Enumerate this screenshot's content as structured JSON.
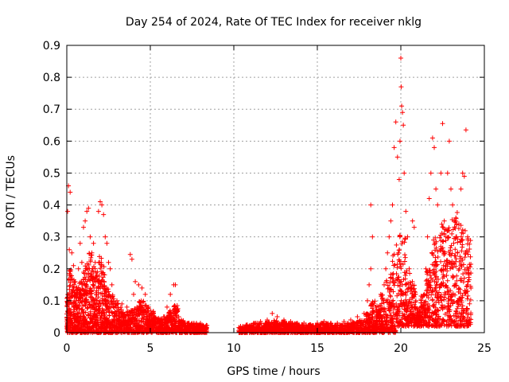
{
  "chart_data": {
    "type": "scatter",
    "title": "Day 254 of 2024, Rate Of TEC Index for receiver nklg",
    "xlabel": "GPS time / hours",
    "ylabel": "ROTI / TECUs",
    "xlim": [
      0,
      25
    ],
    "ylim": [
      0,
      0.9
    ],
    "xticks": [
      0,
      5,
      10,
      15,
      20,
      25
    ],
    "yticks": [
      0,
      0.1,
      0.2,
      0.3,
      0.4,
      0.5,
      0.6,
      0.7,
      0.8,
      0.9
    ],
    "grid": true,
    "marker": "+",
    "color": "#ff0000",
    "series": [
      {
        "name": "ROTI",
        "points": [
          [
            0.1,
            0.46
          ],
          [
            0.2,
            0.44
          ],
          [
            0.05,
            0.38
          ],
          [
            0.15,
            0.26
          ],
          [
            0.3,
            0.25
          ],
          [
            0.4,
            0.21
          ],
          [
            0.2,
            0.18
          ],
          [
            0.5,
            0.16
          ],
          [
            0.6,
            0.14
          ],
          [
            0.7,
            0.2
          ],
          [
            0.8,
            0.28
          ],
          [
            0.9,
            0.22
          ],
          [
            1.0,
            0.33
          ],
          [
            1.1,
            0.35
          ],
          [
            1.2,
            0.38
          ],
          [
            1.3,
            0.39
          ],
          [
            1.4,
            0.3
          ],
          [
            1.5,
            0.25
          ],
          [
            1.6,
            0.28
          ],
          [
            1.7,
            0.22
          ],
          [
            1.8,
            0.18
          ],
          [
            1.9,
            0.38
          ],
          [
            2.0,
            0.41
          ],
          [
            2.1,
            0.4
          ],
          [
            2.2,
            0.37
          ],
          [
            2.3,
            0.3
          ],
          [
            2.4,
            0.28
          ],
          [
            2.5,
            0.22
          ],
          [
            2.6,
            0.2
          ],
          [
            2.7,
            0.15
          ],
          [
            3.0,
            0.1
          ],
          [
            3.3,
            0.09
          ],
          [
            3.6,
            0.08
          ],
          [
            3.8,
            0.245
          ],
          [
            3.9,
            0.23
          ],
          [
            4.0,
            0.12
          ],
          [
            4.1,
            0.16
          ],
          [
            4.3,
            0.15
          ],
          [
            4.5,
            0.14
          ],
          [
            4.7,
            0.12
          ],
          [
            4.9,
            0.08
          ],
          [
            5.2,
            0.05
          ],
          [
            5.5,
            0.04
          ],
          [
            5.8,
            0.05
          ],
          [
            6.0,
            0.08
          ],
          [
            6.2,
            0.12
          ],
          [
            6.4,
            0.15
          ],
          [
            6.5,
            0.15
          ],
          [
            6.7,
            0.05
          ],
          [
            7.0,
            0.03
          ],
          [
            7.3,
            0.03
          ],
          [
            7.6,
            0.025
          ],
          [
            8.0,
            0.03
          ],
          [
            8.2,
            0.02
          ],
          [
            10.4,
            0.02
          ],
          [
            10.8,
            0.025
          ],
          [
            11.2,
            0.03
          ],
          [
            11.6,
            0.035
          ],
          [
            12.0,
            0.04
          ],
          [
            12.3,
            0.06
          ],
          [
            12.6,
            0.05
          ],
          [
            13.0,
            0.04
          ],
          [
            13.4,
            0.035
          ],
          [
            13.8,
            0.03
          ],
          [
            14.2,
            0.03
          ],
          [
            14.6,
            0.025
          ],
          [
            15.0,
            0.03
          ],
          [
            15.4,
            0.035
          ],
          [
            15.8,
            0.03
          ],
          [
            16.2,
            0.03
          ],
          [
            16.6,
            0.035
          ],
          [
            17.0,
            0.04
          ],
          [
            17.4,
            0.05
          ],
          [
            17.8,
            0.06
          ],
          [
            18.0,
            0.1
          ],
          [
            18.1,
            0.15
          ],
          [
            18.2,
            0.2
          ],
          [
            18.3,
            0.3
          ],
          [
            18.2,
            0.4
          ],
          [
            18.5,
            0.08
          ],
          [
            18.8,
            0.12
          ],
          [
            19.0,
            0.15
          ],
          [
            19.1,
            0.2
          ],
          [
            19.2,
            0.25
          ],
          [
            19.3,
            0.3
          ],
          [
            19.4,
            0.35
          ],
          [
            19.5,
            0.4
          ],
          [
            19.6,
            0.58
          ],
          [
            19.7,
            0.66
          ],
          [
            19.8,
            0.55
          ],
          [
            19.9,
            0.48
          ],
          [
            19.95,
            0.6
          ],
          [
            20.0,
            0.86
          ],
          [
            20.02,
            0.77
          ],
          [
            20.05,
            0.71
          ],
          [
            20.1,
            0.69
          ],
          [
            20.15,
            0.65
          ],
          [
            20.2,
            0.5
          ],
          [
            20.3,
            0.38
          ],
          [
            20.4,
            0.3
          ],
          [
            20.5,
            0.2
          ],
          [
            20.6,
            0.15
          ],
          [
            20.7,
            0.35
          ],
          [
            20.8,
            0.33
          ],
          [
            20.9,
            0.1
          ],
          [
            21.0,
            0.05
          ],
          [
            21.2,
            0.08
          ],
          [
            21.4,
            0.12
          ],
          [
            21.5,
            0.2
          ],
          [
            21.6,
            0.3
          ],
          [
            21.7,
            0.42
          ],
          [
            21.8,
            0.5
          ],
          [
            21.9,
            0.61
          ],
          [
            22.0,
            0.58
          ],
          [
            22.1,
            0.45
          ],
          [
            22.2,
            0.4
          ],
          [
            22.4,
            0.5
          ],
          [
            22.5,
            0.655
          ],
          [
            22.6,
            0.35
          ],
          [
            22.7,
            0.3
          ],
          [
            22.8,
            0.5
          ],
          [
            22.9,
            0.6
          ],
          [
            23.0,
            0.45
          ],
          [
            23.1,
            0.4
          ],
          [
            23.2,
            0.35
          ],
          [
            23.3,
            0.3
          ],
          [
            23.4,
            0.25
          ],
          [
            23.5,
            0.2
          ],
          [
            23.6,
            0.45
          ],
          [
            23.7,
            0.5
          ],
          [
            23.8,
            0.49
          ],
          [
            23.9,
            0.635
          ],
          [
            24.0,
            0.3
          ],
          [
            24.0,
            0.15
          ]
        ]
      }
    ],
    "bands": [
      [
        0.0,
        0.0,
        0.12
      ],
      [
        0.1,
        0.0,
        0.2
      ],
      [
        0.3,
        0.0,
        0.17
      ],
      [
        0.5,
        0.0,
        0.15
      ],
      [
        0.7,
        0.0,
        0.16
      ],
      [
        0.9,
        0.0,
        0.2
      ],
      [
        1.1,
        0.0,
        0.24
      ],
      [
        1.3,
        0.0,
        0.26
      ],
      [
        1.5,
        0.0,
        0.22
      ],
      [
        1.7,
        0.0,
        0.2
      ],
      [
        1.9,
        0.0,
        0.24
      ],
      [
        2.1,
        0.0,
        0.22
      ],
      [
        2.3,
        0.0,
        0.16
      ],
      [
        2.5,
        0.0,
        0.12
      ],
      [
        2.8,
        0.0,
        0.1
      ],
      [
        3.1,
        0.0,
        0.08
      ],
      [
        3.4,
        0.0,
        0.07
      ],
      [
        3.7,
        0.0,
        0.07
      ],
      [
        4.0,
        0.0,
        0.08
      ],
      [
        4.3,
        0.0,
        0.1
      ],
      [
        4.6,
        0.0,
        0.09
      ],
      [
        4.9,
        0.0,
        0.07
      ],
      [
        5.2,
        0.0,
        0.05
      ],
      [
        5.5,
        0.0,
        0.045
      ],
      [
        5.8,
        0.0,
        0.05
      ],
      [
        6.1,
        0.0,
        0.07
      ],
      [
        6.4,
        0.0,
        0.09
      ],
      [
        6.7,
        0.0,
        0.04
      ],
      [
        7.0,
        0.0,
        0.03
      ],
      [
        7.4,
        0.0,
        0.03
      ],
      [
        7.8,
        0.0,
        0.025
      ],
      [
        8.1,
        0.0,
        0.025
      ],
      [
        10.3,
        0.0,
        0.02
      ],
      [
        10.7,
        0.0,
        0.025
      ],
      [
        11.1,
        0.0,
        0.03
      ],
      [
        11.5,
        0.0,
        0.03
      ],
      [
        11.9,
        0.0,
        0.035
      ],
      [
        12.3,
        0.0,
        0.04
      ],
      [
        12.7,
        0.0,
        0.035
      ],
      [
        13.1,
        0.0,
        0.03
      ],
      [
        13.5,
        0.0,
        0.03
      ],
      [
        13.9,
        0.0,
        0.025
      ],
      [
        14.3,
        0.0,
        0.025
      ],
      [
        14.7,
        0.0,
        0.025
      ],
      [
        15.1,
        0.0,
        0.03
      ],
      [
        15.5,
        0.0,
        0.03
      ],
      [
        15.9,
        0.0,
        0.025
      ],
      [
        16.3,
        0.0,
        0.025
      ],
      [
        16.7,
        0.0,
        0.03
      ],
      [
        17.1,
        0.0,
        0.035
      ],
      [
        17.5,
        0.0,
        0.04
      ],
      [
        17.9,
        0.0,
        0.06
      ],
      [
        18.2,
        0.0,
        0.1
      ],
      [
        18.5,
        0.0,
        0.09
      ],
      [
        18.8,
        0.0,
        0.12
      ],
      [
        19.1,
        0.0,
        0.18
      ],
      [
        19.4,
        0.0,
        0.25
      ],
      [
        19.7,
        0.02,
        0.32
      ],
      [
        20.0,
        0.02,
        0.3
      ],
      [
        20.3,
        0.02,
        0.2
      ],
      [
        20.6,
        0.02,
        0.16
      ],
      [
        20.9,
        0.02,
        0.08
      ],
      [
        21.2,
        0.02,
        0.12
      ],
      [
        21.5,
        0.02,
        0.2
      ],
      [
        21.8,
        0.02,
        0.3
      ],
      [
        22.1,
        0.02,
        0.32
      ],
      [
        22.4,
        0.02,
        0.34
      ],
      [
        22.7,
        0.02,
        0.33
      ],
      [
        23.0,
        0.02,
        0.36
      ],
      [
        23.3,
        0.02,
        0.38
      ],
      [
        23.6,
        0.02,
        0.35
      ],
      [
        23.9,
        0.02,
        0.3
      ]
    ]
  }
}
